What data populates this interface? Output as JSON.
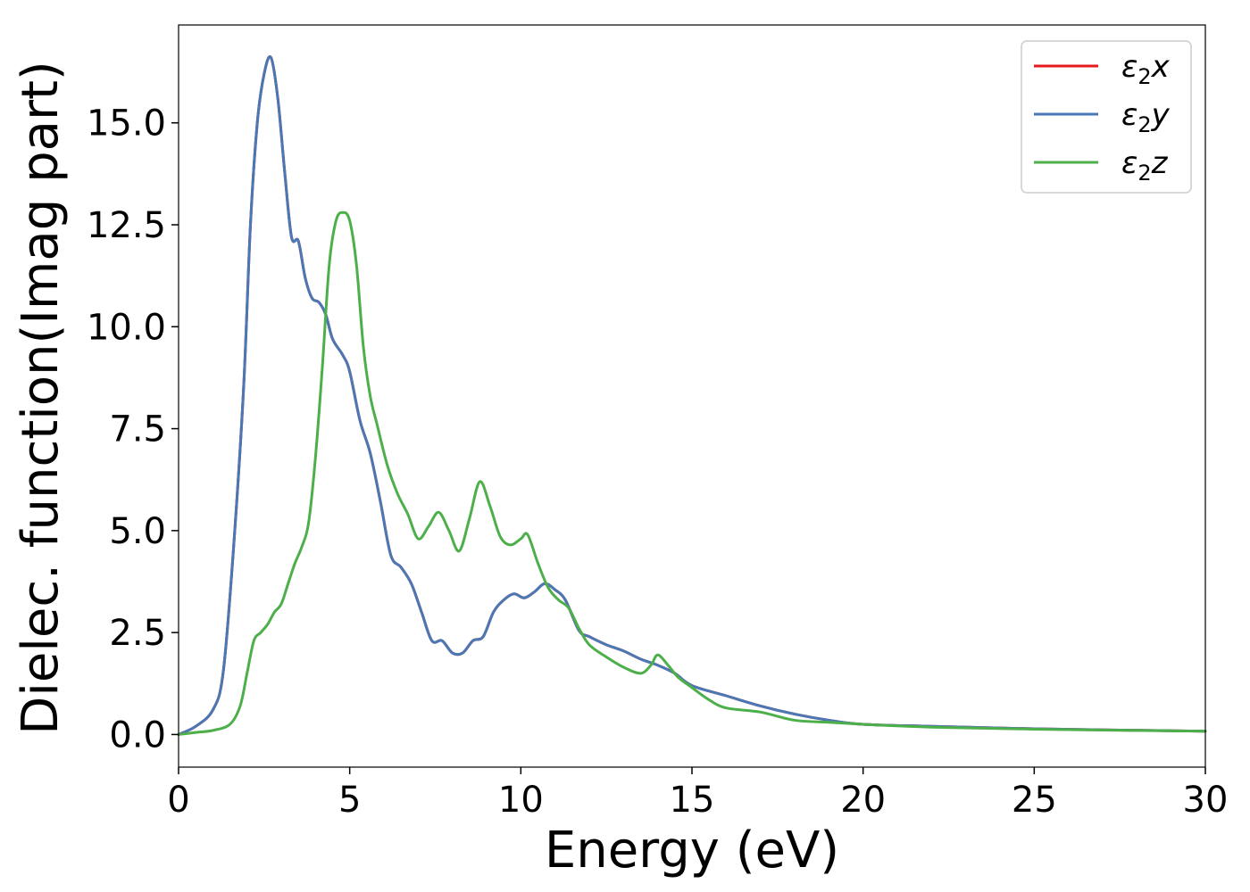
{
  "chart_data": {
    "type": "line",
    "xlabel": "Energy (eV)",
    "ylabel": "Dielec. function(Imag part)",
    "xlim": [
      0,
      30
    ],
    "ylim": [
      -0.8,
      17.4
    ],
    "xticks": [
      0,
      5,
      10,
      15,
      20,
      25,
      30
    ],
    "xtick_labels": [
      "0",
      "5",
      "10",
      "15",
      "20",
      "25",
      "30"
    ],
    "yticks": [
      0,
      2.5,
      5,
      7.5,
      10,
      12.5,
      15
    ],
    "ytick_labels": [
      "0.0",
      "2.5",
      "5.0",
      "7.5",
      "10.0",
      "12.5",
      "15.0"
    ],
    "grid": false,
    "legend_position": "top-right",
    "series": [
      {
        "name": "ε2x",
        "legend_base": "ε",
        "legend_sub": "2",
        "legend_var": "x",
        "color": "#e41a1c",
        "x": [
          0,
          0.5,
          1.0,
          1.3,
          1.6,
          1.9,
          2.1,
          2.3,
          2.5,
          2.7,
          2.9,
          3.1,
          3.3,
          3.5,
          3.7,
          3.9,
          4.1,
          4.3,
          4.5,
          4.8,
          5.0,
          5.3,
          5.6,
          5.9,
          6.2,
          6.5,
          6.8,
          7.1,
          7.4,
          7.7,
          8.0,
          8.3,
          8.6,
          8.9,
          9.2,
          9.5,
          9.8,
          10.1,
          10.4,
          10.7,
          11.0,
          11.3,
          11.7,
          12.0,
          12.5,
          13.0,
          13.5,
          14.0,
          14.5,
          15.0,
          16.0,
          17.0,
          18.0,
          19.0,
          20.0,
          22.0,
          25.0,
          30.0
        ],
        "y": [
          0.0,
          0.2,
          0.6,
          1.5,
          4.5,
          8.5,
          12.5,
          15.0,
          16.2,
          16.6,
          15.6,
          13.8,
          12.2,
          12.1,
          11.2,
          10.7,
          10.6,
          10.3,
          9.7,
          9.3,
          8.9,
          7.7,
          6.9,
          5.7,
          4.4,
          4.1,
          3.7,
          3.0,
          2.3,
          2.3,
          2.0,
          2.0,
          2.3,
          2.4,
          3.0,
          3.3,
          3.45,
          3.35,
          3.5,
          3.7,
          3.55,
          3.3,
          2.55,
          2.4,
          2.2,
          2.05,
          1.85,
          1.7,
          1.5,
          1.2,
          0.95,
          0.7,
          0.5,
          0.35,
          0.25,
          0.2,
          0.14,
          0.08
        ]
      },
      {
        "name": "ε2y",
        "legend_base": "ε",
        "legend_sub": "2",
        "legend_var": "y",
        "color": "#4a78b5",
        "x": [
          0,
          0.5,
          1.0,
          1.3,
          1.6,
          1.9,
          2.1,
          2.3,
          2.5,
          2.7,
          2.9,
          3.1,
          3.3,
          3.5,
          3.7,
          3.9,
          4.1,
          4.3,
          4.5,
          4.8,
          5.0,
          5.3,
          5.6,
          5.9,
          6.2,
          6.5,
          6.8,
          7.1,
          7.4,
          7.7,
          8.0,
          8.3,
          8.6,
          8.9,
          9.2,
          9.5,
          9.8,
          10.1,
          10.4,
          10.7,
          11.0,
          11.3,
          11.7,
          12.0,
          12.5,
          13.0,
          13.5,
          14.0,
          14.5,
          15.0,
          16.0,
          17.0,
          18.0,
          19.0,
          20.0,
          22.0,
          25.0,
          30.0
        ],
        "y": [
          0.0,
          0.2,
          0.6,
          1.5,
          4.5,
          8.5,
          12.5,
          15.0,
          16.2,
          16.6,
          15.6,
          13.8,
          12.2,
          12.1,
          11.2,
          10.7,
          10.6,
          10.3,
          9.7,
          9.3,
          8.9,
          7.7,
          6.9,
          5.7,
          4.4,
          4.1,
          3.7,
          3.0,
          2.3,
          2.3,
          2.0,
          2.0,
          2.3,
          2.4,
          3.0,
          3.3,
          3.45,
          3.35,
          3.5,
          3.7,
          3.55,
          3.3,
          2.55,
          2.4,
          2.2,
          2.05,
          1.85,
          1.7,
          1.5,
          1.2,
          0.95,
          0.7,
          0.5,
          0.35,
          0.25,
          0.2,
          0.14,
          0.08
        ]
      },
      {
        "name": "ε2z",
        "legend_base": "ε",
        "legend_sub": "2",
        "legend_var": "z",
        "color": "#4daf4a",
        "x": [
          0,
          0.5,
          1.0,
          1.5,
          1.8,
          2.0,
          2.2,
          2.4,
          2.6,
          2.8,
          3.0,
          3.2,
          3.4,
          3.6,
          3.8,
          4.0,
          4.2,
          4.4,
          4.6,
          4.8,
          5.0,
          5.2,
          5.4,
          5.6,
          5.8,
          6.1,
          6.4,
          6.7,
          7.0,
          7.3,
          7.6,
          7.9,
          8.2,
          8.5,
          8.8,
          9.1,
          9.4,
          9.7,
          10.0,
          10.2,
          10.5,
          10.8,
          11.1,
          11.4,
          11.7,
          12.0,
          12.5,
          13.0,
          13.5,
          13.8,
          14.0,
          14.3,
          14.6,
          15.0,
          15.5,
          16.0,
          17.0,
          18.0,
          19.0,
          20.0,
          22.0,
          25.0,
          30.0
        ],
        "y": [
          0.0,
          0.05,
          0.1,
          0.25,
          0.7,
          1.5,
          2.3,
          2.5,
          2.7,
          3.0,
          3.2,
          3.7,
          4.2,
          4.6,
          5.2,
          6.8,
          9.0,
          11.5,
          12.6,
          12.8,
          12.6,
          11.5,
          9.5,
          8.3,
          7.6,
          6.6,
          5.9,
          5.4,
          4.8,
          5.1,
          5.45,
          5.0,
          4.5,
          5.3,
          6.2,
          5.6,
          4.85,
          4.65,
          4.8,
          4.9,
          4.2,
          3.6,
          3.3,
          3.1,
          2.6,
          2.2,
          1.9,
          1.65,
          1.5,
          1.7,
          1.95,
          1.7,
          1.4,
          1.15,
          0.85,
          0.65,
          0.55,
          0.35,
          0.3,
          0.25,
          0.18,
          0.13,
          0.08
        ]
      }
    ]
  }
}
